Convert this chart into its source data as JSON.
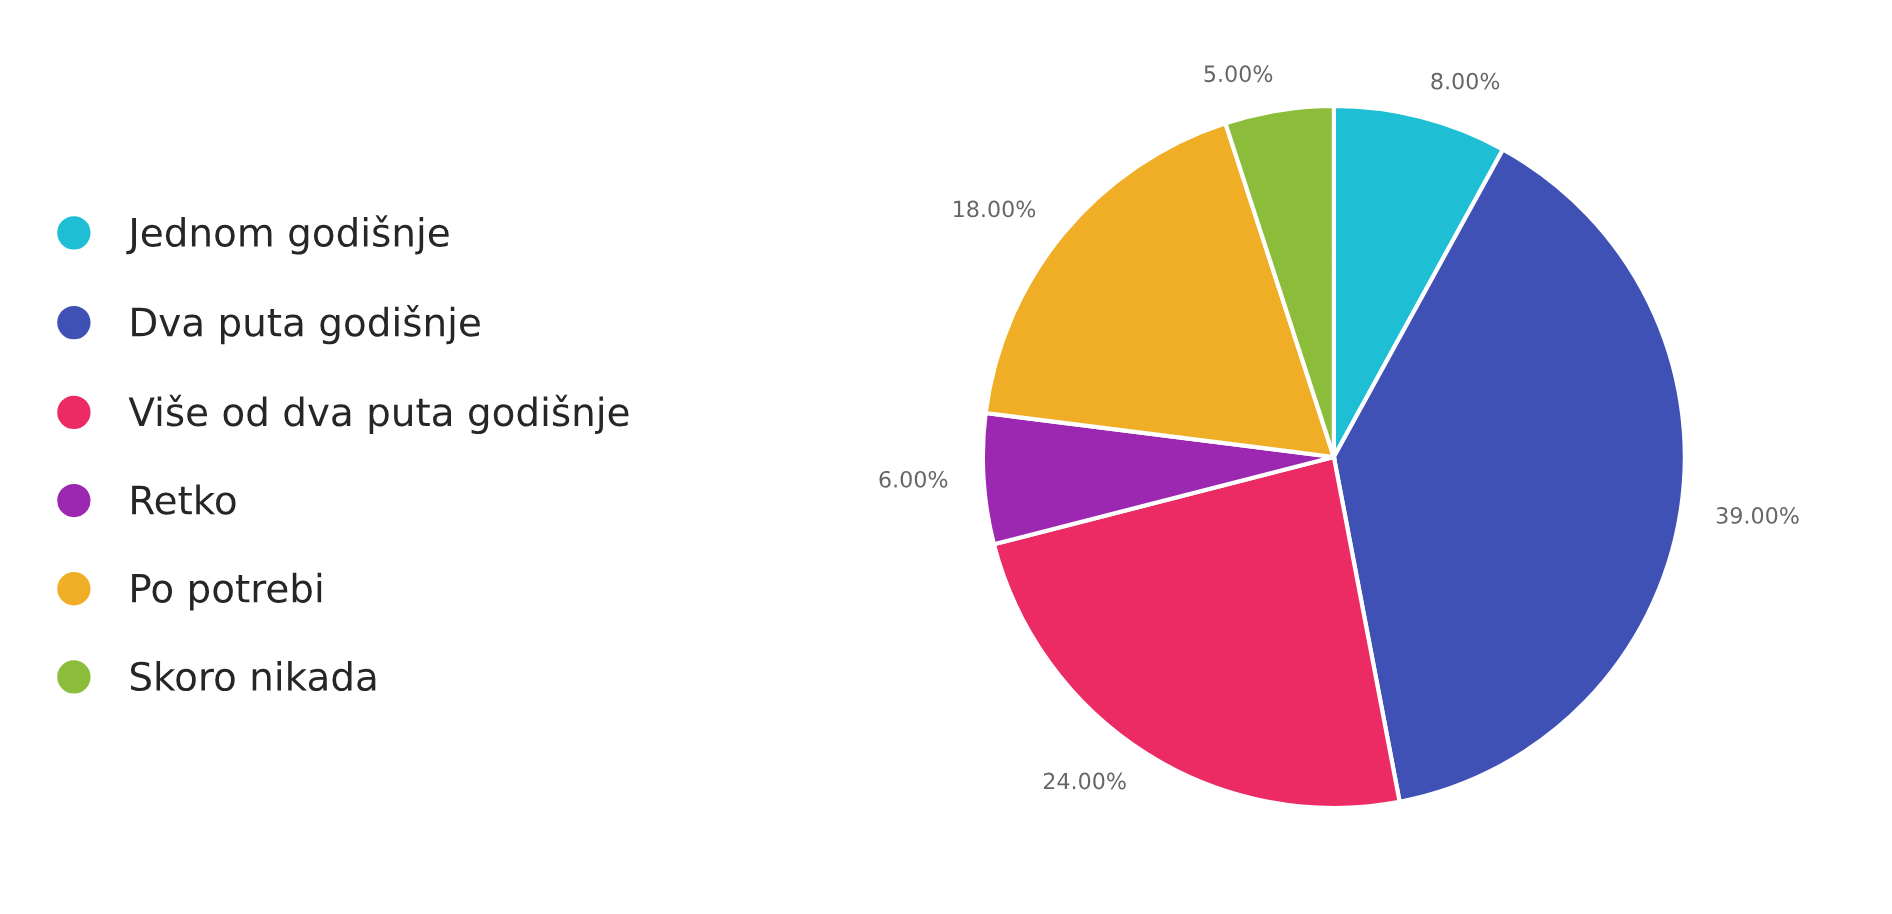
{
  "chart_data": {
    "type": "pie",
    "categories": [
      "Jednom godišnje",
      "Dva puta godišnje",
      "Više od dva puta godišnje",
      "Retko",
      "Po potrebi",
      "Skoro nikada"
    ],
    "values": [
      8,
      39,
      24,
      6,
      18,
      5
    ],
    "value_labels": [
      "8.00%",
      "39.00%",
      "24.00%",
      "6.00%",
      "18.00%",
      "5.00%"
    ],
    "colors": [
      "#1ebfd5",
      "#3f51b5",
      "#ec2b64",
      "#9c27b0",
      "#f0ae27",
      "#8bbd3a"
    ],
    "legend": "left"
  }
}
